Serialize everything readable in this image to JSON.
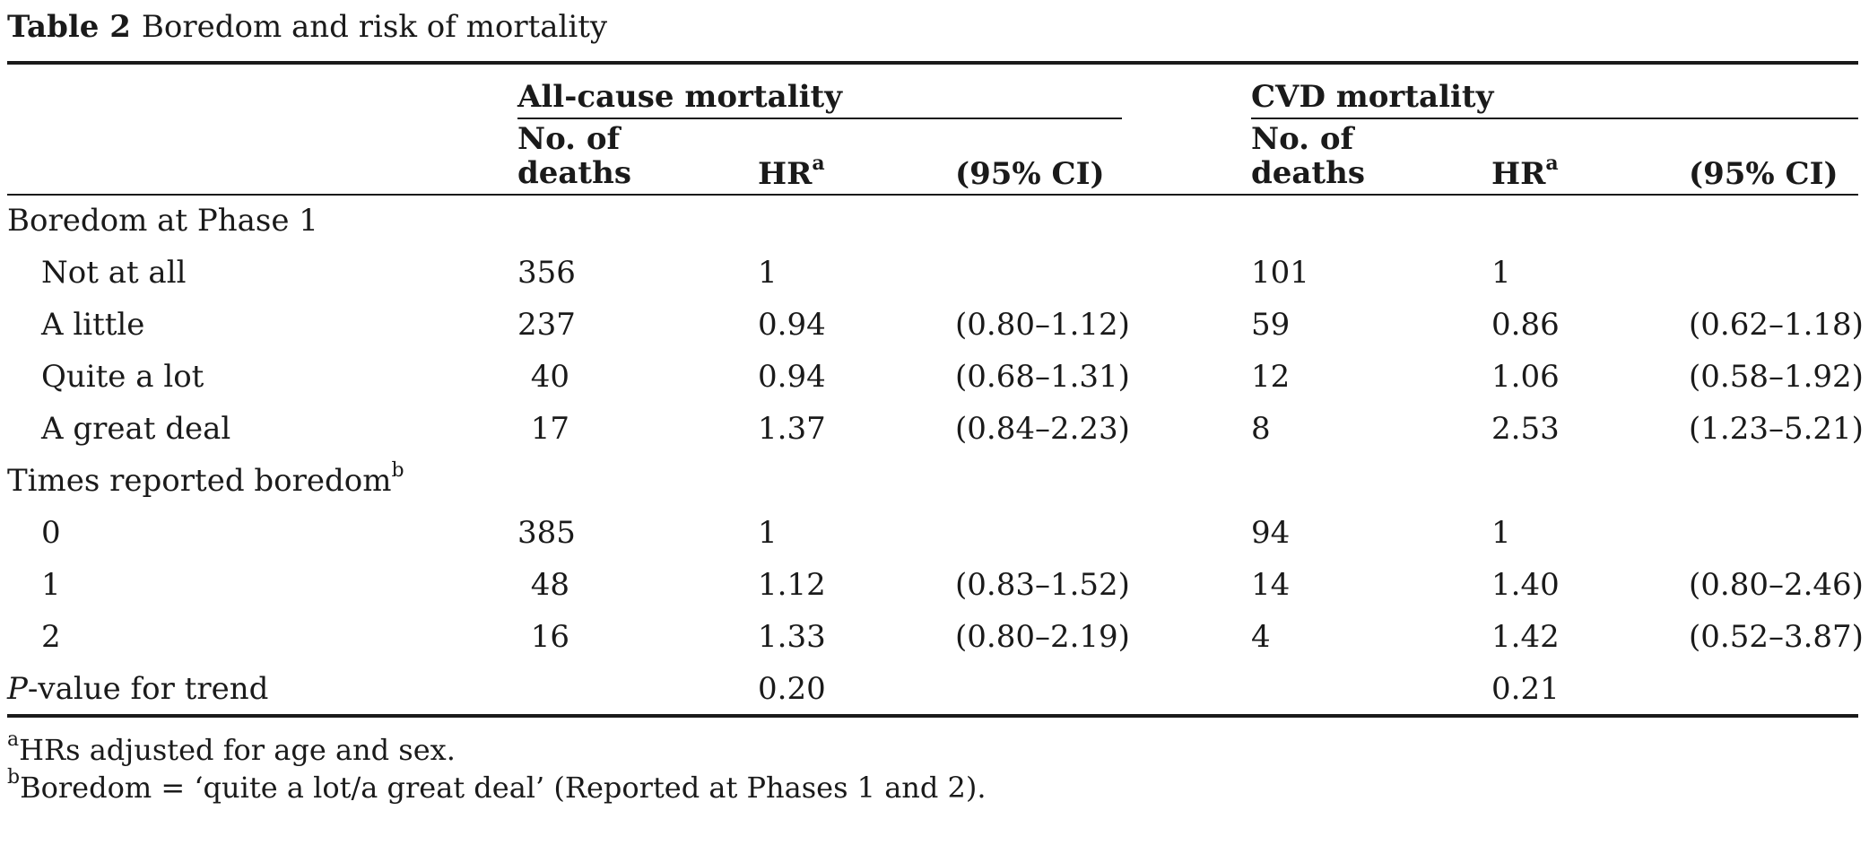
{
  "table": {
    "label": "Table 2",
    "title": "Boredom and risk of mortality",
    "groups": {
      "all_cause": "All-cause mortality",
      "cvd": "CVD mortality"
    },
    "columns": {
      "deaths_line1": "No. of",
      "deaths_line2": "deaths",
      "hr": "HR",
      "hr_sup": "a",
      "ci": "(95% CI)"
    },
    "sections": [
      {
        "label": "Boredom at Phase 1",
        "label_sup": "",
        "rows": [
          {
            "label": "Not at all",
            "ac_deaths": "356",
            "ac_hr": "1",
            "ac_ci": "",
            "cvd_deaths": "101",
            "cvd_hr": "1",
            "cvd_ci": ""
          },
          {
            "label": "A little",
            "ac_deaths": "237",
            "ac_hr": "0.94",
            "ac_ci": "(0.80–1.12)",
            "cvd_deaths": "59",
            "cvd_hr": "0.86",
            "cvd_ci": "(0.62–1.18)"
          },
          {
            "label": "Quite a lot",
            "ac_deaths": "40",
            "ac_hr": "0.94",
            "ac_ci": "(0.68–1.31)",
            "cvd_deaths": "12",
            "cvd_hr": "1.06",
            "cvd_ci": "(0.58–1.92)"
          },
          {
            "label": "A great deal",
            "ac_deaths": "17",
            "ac_hr": "1.37",
            "ac_ci": "(0.84–2.23)",
            "cvd_deaths": "8",
            "cvd_hr": "2.53",
            "cvd_ci": "(1.23–5.21)"
          }
        ]
      },
      {
        "label": "Times reported boredom",
        "label_sup": "b",
        "rows": [
          {
            "label": "0",
            "ac_deaths": "385",
            "ac_hr": "1",
            "ac_ci": "",
            "cvd_deaths": "94",
            "cvd_hr": "1",
            "cvd_ci": ""
          },
          {
            "label": "1",
            "ac_deaths": "48",
            "ac_hr": "1.12",
            "ac_ci": "(0.83–1.52)",
            "cvd_deaths": "14",
            "cvd_hr": "1.40",
            "cvd_ci": "(0.80–2.46)"
          },
          {
            "label": "2",
            "ac_deaths": "16",
            "ac_hr": "1.33",
            "ac_ci": "(0.80–2.19)",
            "cvd_deaths": "4",
            "cvd_hr": "1.42",
            "cvd_ci": "(0.52–3.87)"
          }
        ]
      }
    ],
    "trend": {
      "label_italic": "P",
      "label_rest": "-value for trend",
      "ac_hr": "0.20",
      "cvd_hr": "0.21"
    },
    "footnotes": [
      {
        "mark": "a",
        "text": "HRs adjusted for age and sex."
      },
      {
        "mark": "b",
        "text": "Boredom = ‘quite a lot/a great deal’ (Reported at Phases 1 and 2)."
      }
    ]
  }
}
